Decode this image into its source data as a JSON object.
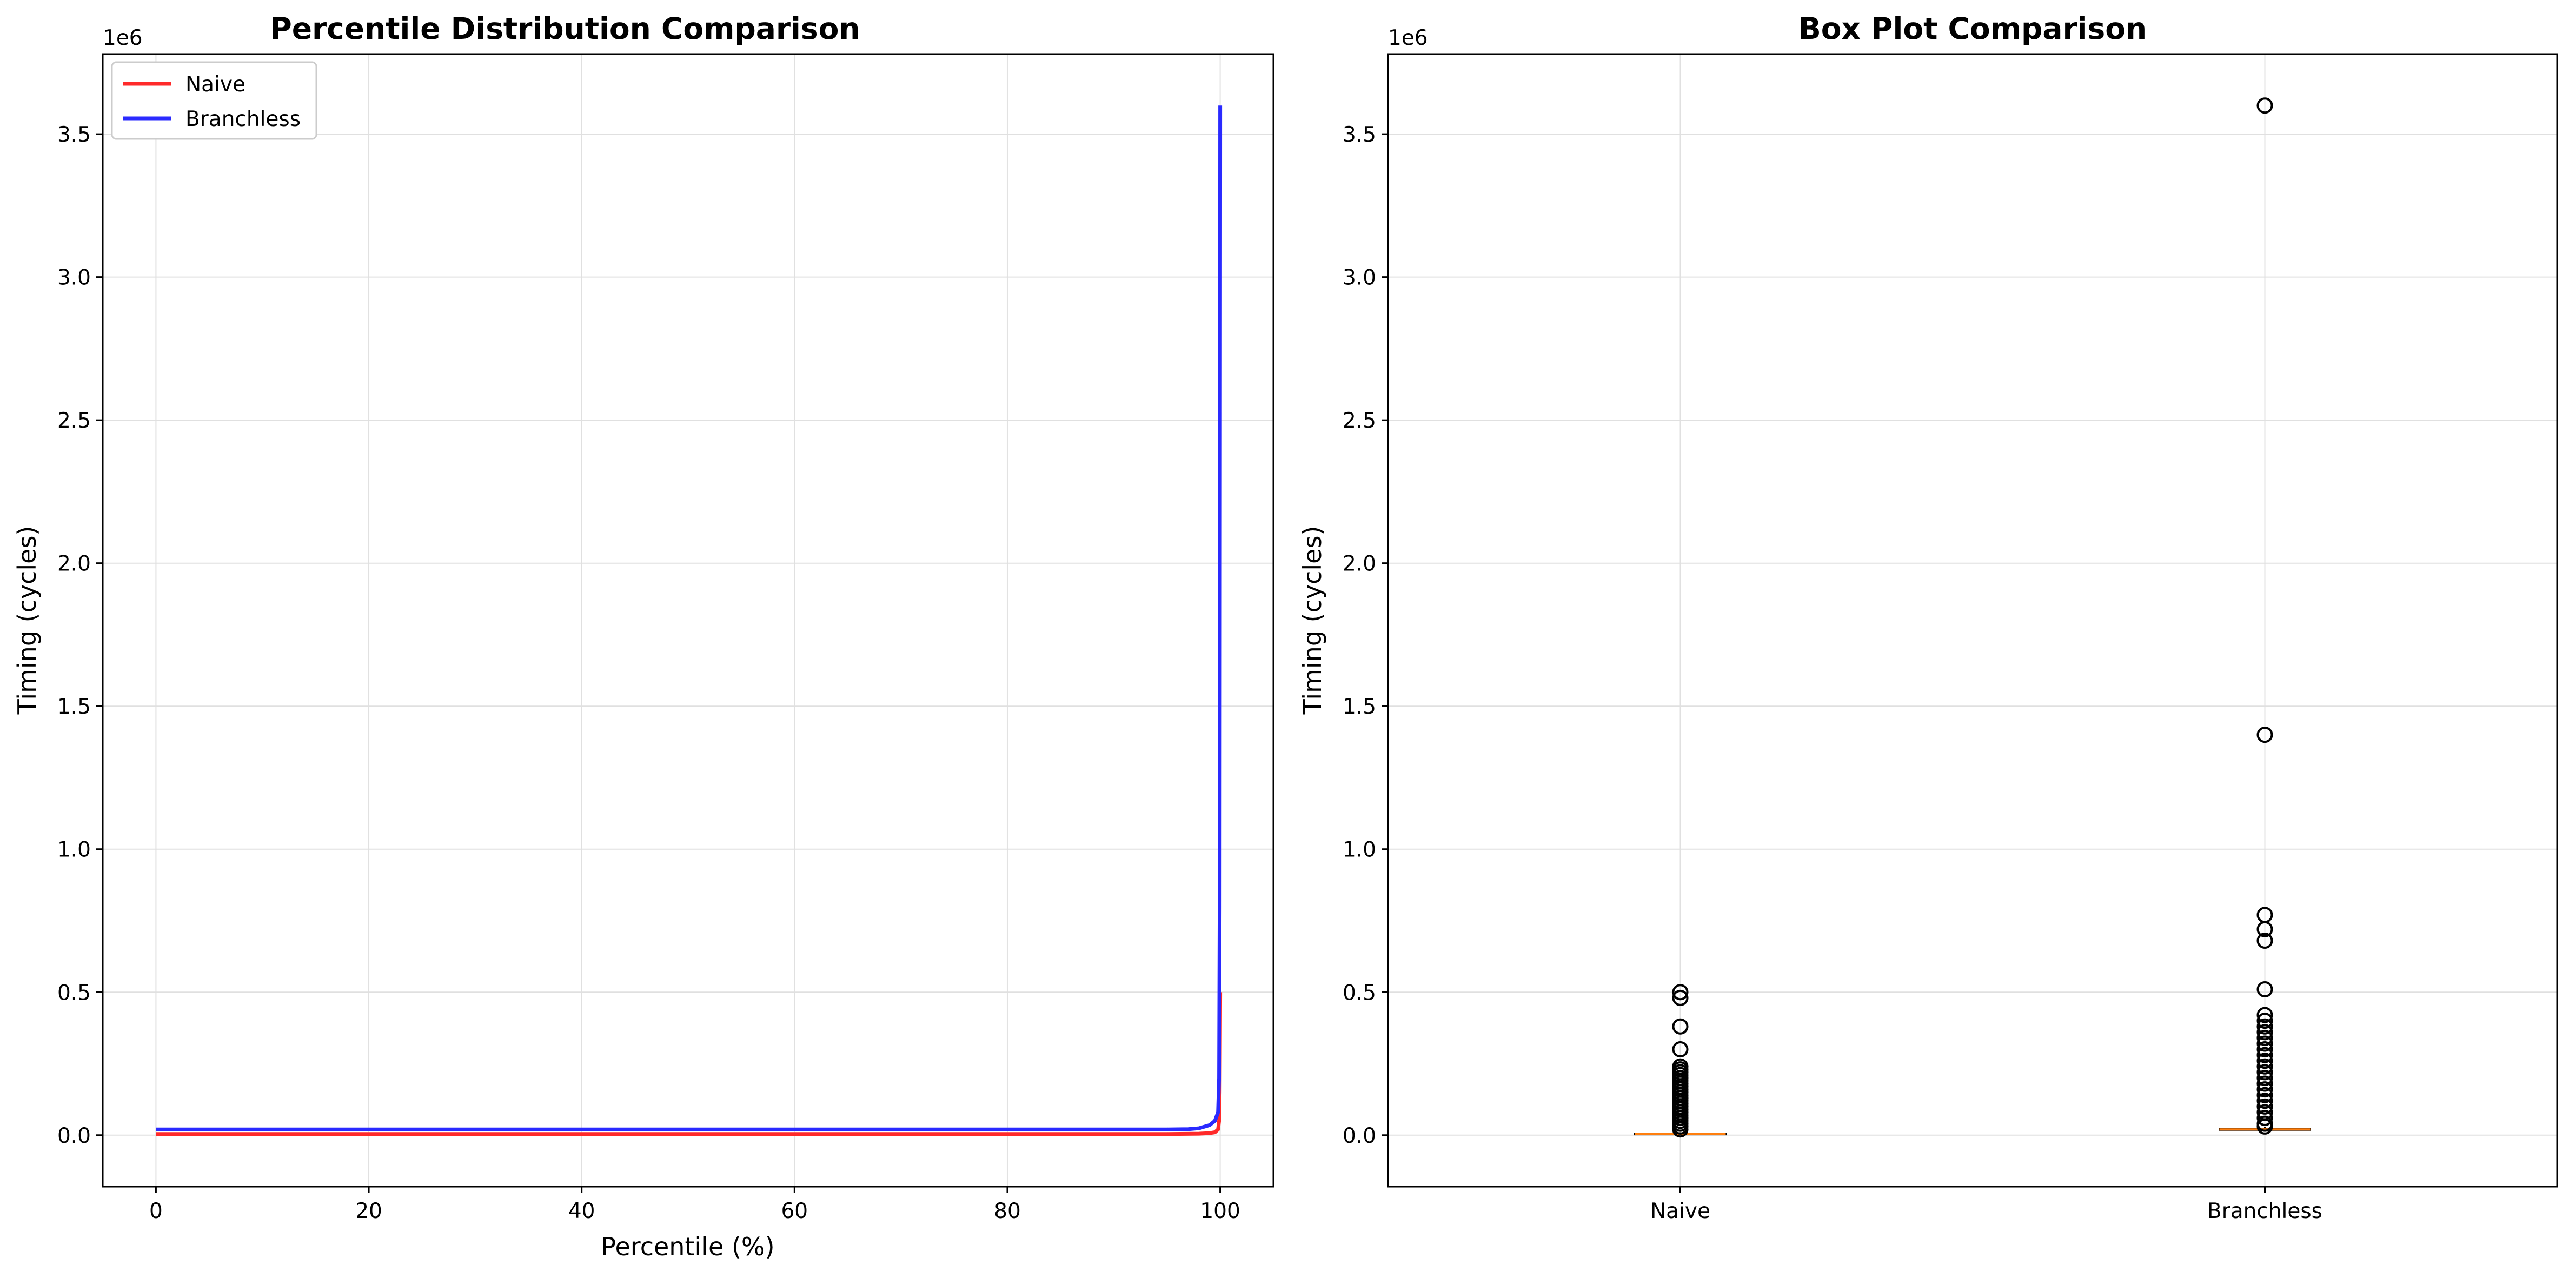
{
  "chart_data": [
    {
      "type": "line",
      "title": "Percentile Distribution Comparison",
      "xlabel": "Percentile (%)",
      "ylabel": "Timing (cycles)",
      "y_offset_label": "1e6",
      "xlim": [
        -5,
        105
      ],
      "ylim": [
        -0.18,
        3.78
      ],
      "x_ticks": [
        0,
        20,
        40,
        60,
        80,
        100
      ],
      "x_tick_labels": [
        "0",
        "20",
        "40",
        "60",
        "80",
        "100"
      ],
      "y_ticks": [
        0,
        0.5,
        1.0,
        1.5,
        2.0,
        2.5,
        3.0,
        3.5
      ],
      "y_tick_labels": [
        "0.0",
        "0.5",
        "1.0",
        "1.5",
        "2.0",
        "2.5",
        "3.0",
        "3.5"
      ],
      "grid": true,
      "legend_position": "upper-left",
      "series": [
        {
          "name": "Naive",
          "color": "#ff2a2a",
          "x": [
            0,
            20,
            40,
            60,
            80,
            95,
            98,
            99,
            99.5,
            99.8,
            99.9,
            99.95,
            100
          ],
          "y": [
            0.004,
            0.004,
            0.004,
            0.004,
            0.004,
            0.004,
            0.005,
            0.007,
            0.01,
            0.02,
            0.05,
            0.15,
            0.5
          ]
        },
        {
          "name": "Branchless",
          "color": "#2a2aff",
          "x": [
            0,
            20,
            40,
            60,
            80,
            95,
            97,
            98,
            99,
            99.5,
            99.8,
            99.9,
            99.95,
            100
          ],
          "y": [
            0.02,
            0.02,
            0.02,
            0.02,
            0.02,
            0.02,
            0.021,
            0.024,
            0.035,
            0.05,
            0.08,
            0.2,
            0.8,
            3.6
          ]
        }
      ]
    },
    {
      "type": "box",
      "title": "Box Plot Comparison",
      "xlabel": "",
      "ylabel": "Timing (cycles)",
      "y_offset_label": "1e6",
      "ylim": [
        -0.18,
        3.78
      ],
      "y_ticks": [
        0,
        0.5,
        1.0,
        1.5,
        2.0,
        2.5,
        3.0,
        3.5
      ],
      "y_tick_labels": [
        "0.0",
        "0.5",
        "1.0",
        "1.5",
        "2.0",
        "2.5",
        "3.0",
        "3.5"
      ],
      "categories": [
        "Naive",
        "Branchless"
      ],
      "grid": true,
      "median_color": "#ff7f0e",
      "boxes": [
        {
          "category": "Naive",
          "q1": 0.003,
          "median": 0.004,
          "q3": 0.006,
          "whisker_low": 0.0,
          "whisker_high": 0.01,
          "outliers": [
            0.5,
            0.48,
            0.38,
            0.3,
            0.24,
            0.23,
            0.22,
            0.21,
            0.2,
            0.19,
            0.18,
            0.17,
            0.16,
            0.15,
            0.14,
            0.13,
            0.12,
            0.11,
            0.1,
            0.09,
            0.08,
            0.07,
            0.06,
            0.05,
            0.04,
            0.03,
            0.02
          ]
        },
        {
          "category": "Branchless",
          "q1": 0.018,
          "median": 0.02,
          "q3": 0.022,
          "whisker_low": 0.012,
          "whisker_high": 0.028,
          "outliers": [
            3.6,
            1.4,
            0.77,
            0.72,
            0.68,
            0.51,
            0.42,
            0.4,
            0.38,
            0.36,
            0.34,
            0.32,
            0.3,
            0.28,
            0.26,
            0.24,
            0.22,
            0.2,
            0.18,
            0.16,
            0.14,
            0.12,
            0.1,
            0.08,
            0.06,
            0.04,
            0.03
          ]
        }
      ]
    }
  ]
}
